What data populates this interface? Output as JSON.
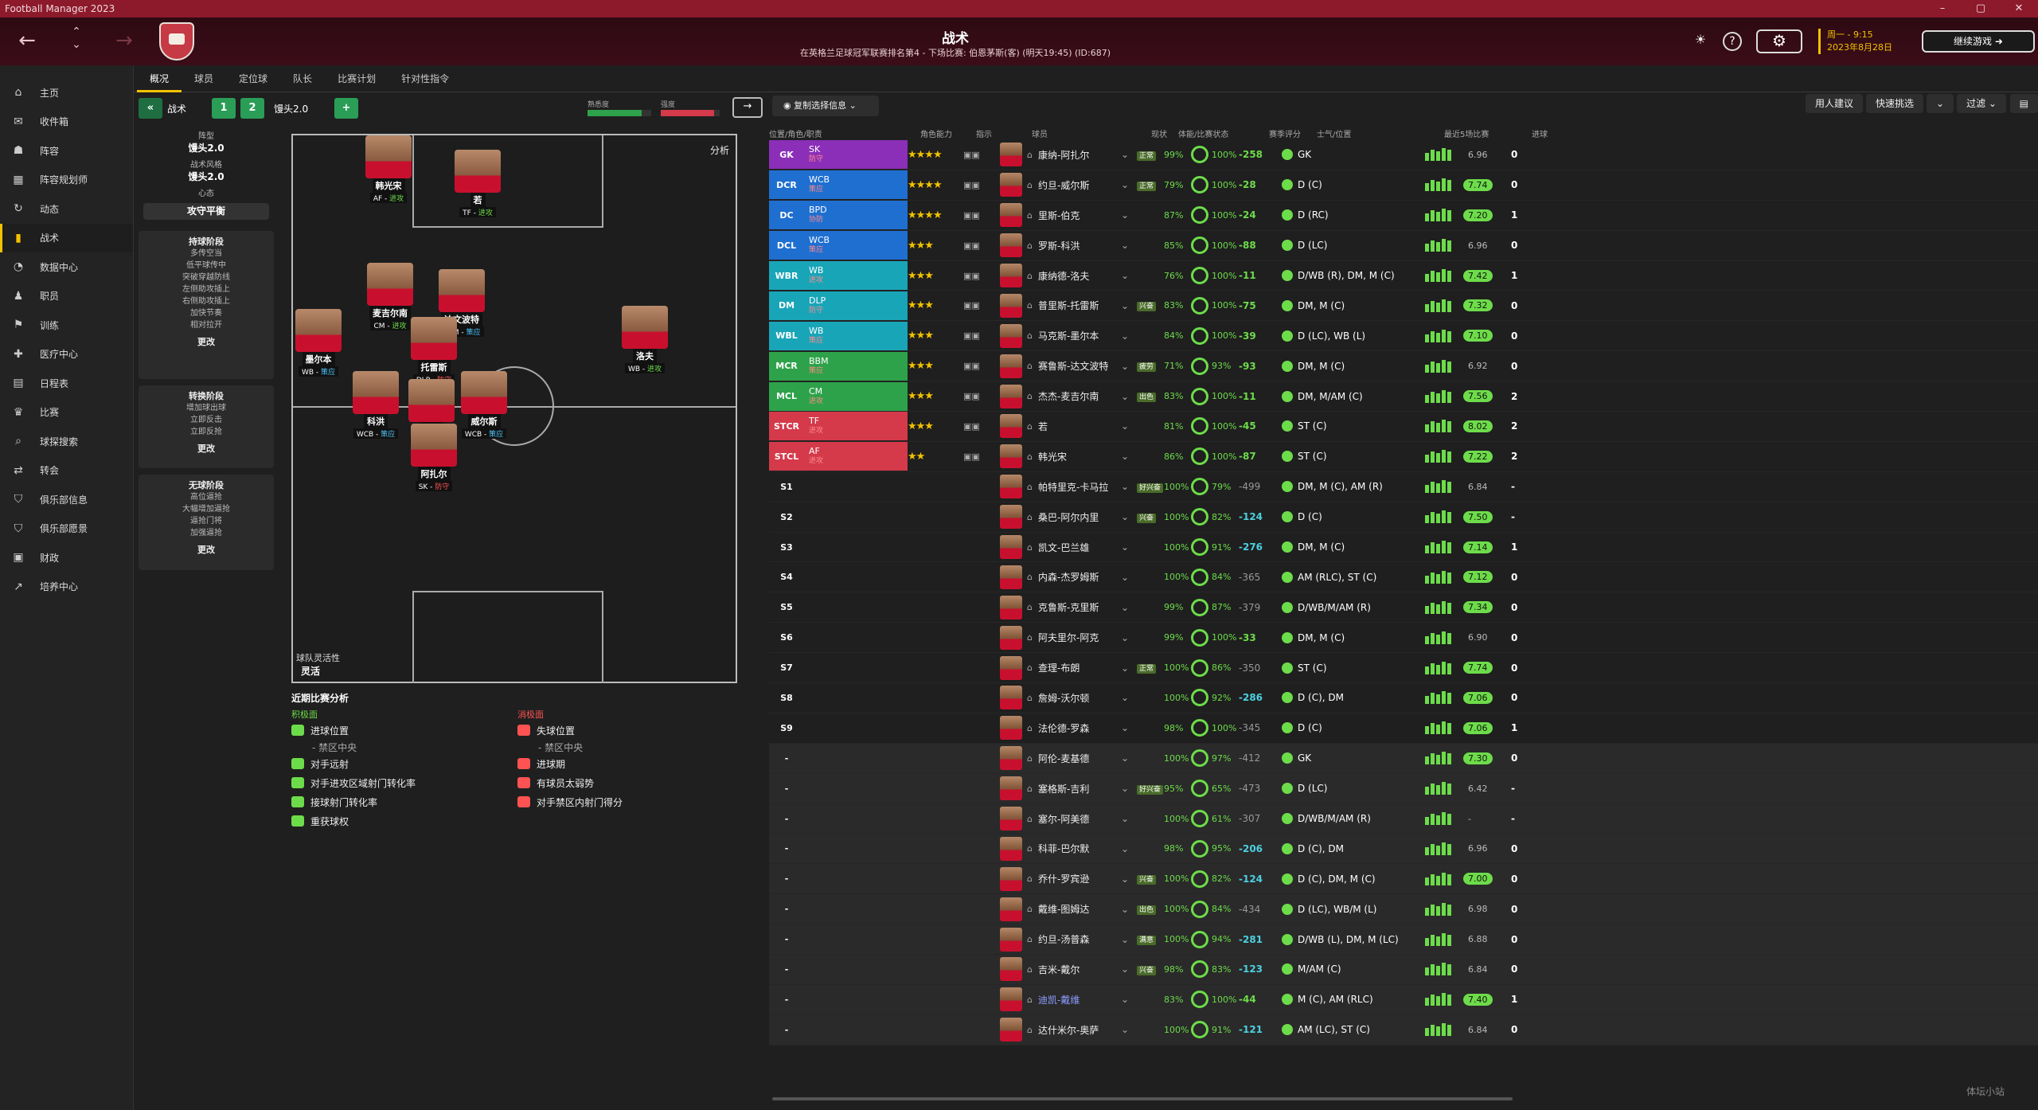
{
  "window": {
    "title": "Football Manager 2023"
  },
  "header": {
    "title": "战术",
    "subtitle": "在英格兰足球冠军联赛排名第4 - 下场比赛: 伯恩茅斯(客) (明天19:45) (ID:687)",
    "date_line1": "周一 - 9:15",
    "date_line2": "2023年8月28日",
    "continue": "继续游戏"
  },
  "sidebar": {
    "items": [
      {
        "label": "主页",
        "icon": "home-icon"
      },
      {
        "label": "收件箱",
        "icon": "inbox-icon"
      },
      {
        "label": "阵容",
        "icon": "squad-icon"
      },
      {
        "label": "阵容规划师",
        "icon": "planner-icon"
      },
      {
        "label": "动态",
        "icon": "dynamics-icon"
      },
      {
        "label": "战术",
        "icon": "tactics-icon"
      },
      {
        "label": "数据中心",
        "icon": "data-icon"
      },
      {
        "label": "职员",
        "icon": "staff-icon"
      },
      {
        "label": "训练",
        "icon": "training-icon"
      },
      {
        "label": "医疗中心",
        "icon": "medical-icon"
      },
      {
        "label": "日程表",
        "icon": "schedule-icon"
      },
      {
        "label": "比赛",
        "icon": "trophy-icon"
      },
      {
        "label": "球探搜索",
        "icon": "scouting-icon"
      },
      {
        "label": "转会",
        "icon": "transfer-icon"
      },
      {
        "label": "俱乐部信息",
        "icon": "club-icon"
      },
      {
        "label": "俱乐部愿景",
        "icon": "vision-icon"
      },
      {
        "label": "财政",
        "icon": "finance-icon"
      },
      {
        "label": "培养中心",
        "icon": "development-icon"
      }
    ]
  },
  "tabs": [
    "概况",
    "球员",
    "定位球",
    "队长",
    "比赛计划",
    "针对性指令"
  ],
  "tacbar": {
    "label": "战术",
    "t1": "1",
    "t2": "2",
    "tactic_name": "馒头2.0",
    "plus": "+",
    "familiarity": "熟悉度",
    "intensity": "强度",
    "copy": "复制选择信息"
  },
  "toolbar": {
    "suggest": "用人建议",
    "quick": "快速挑选",
    "filter": "过滤"
  },
  "left": {
    "formation_label": "阵型",
    "formation": "馒头2.0",
    "style_label": "战术风格",
    "style": "馒头2.0",
    "mentality_label": "心态",
    "mentality": "攻守平衡",
    "in_poss": "持球阶段",
    "in_poss_items": [
      "多传空当",
      "低平球传中",
      "突破穿越防线",
      "左侧助攻插上",
      "右侧助攻插上",
      "加快节奏",
      "相对拉开"
    ],
    "trans": "转换阶段",
    "trans_items": [
      "增加球出球",
      "立即反击",
      "立即反抢"
    ],
    "out_poss": "无球阶段",
    "out_poss_items": [
      "高位逼抢",
      "大幅增加逼抢",
      "逼抢门将",
      "加强逼抢"
    ],
    "more": "更改"
  },
  "pitch": {
    "analysis": "分析",
    "fluidity_label": "球队灵活性",
    "fluidity": "灵活",
    "players": [
      {
        "name": "韩光宋",
        "role": "AF",
        "duty": "进攻",
        "cls": "atk"
      },
      {
        "name": "若",
        "role": "TF",
        "duty": "进攻",
        "cls": "atk"
      },
      {
        "name": "麦吉尔南",
        "role": "CM",
        "duty": "进攻",
        "cls": "atk"
      },
      {
        "name": "达文波特",
        "role": "BBM",
        "duty": "策应",
        "cls": ""
      },
      {
        "name": "墨尔本",
        "role": "WB",
        "duty": "策应",
        "cls": ""
      },
      {
        "name": "托雷斯",
        "role": "DLP",
        "duty": "防守",
        "cls": "sup"
      },
      {
        "name": "洛夫",
        "role": "WB",
        "duty": "进攻",
        "cls": "atk"
      },
      {
        "name": "科洪",
        "role": "WCB",
        "duty": "策应",
        "cls": ""
      },
      {
        "name": "伯克",
        "role": "BPD",
        "duty": "协防",
        "cls": "sup"
      },
      {
        "name": "威尔斯",
        "role": "WCB",
        "duty": "策应",
        "cls": ""
      },
      {
        "name": "阿扎尔",
        "role": "SK",
        "duty": "防守",
        "cls": "sup"
      }
    ]
  },
  "analysis": {
    "title": "近期比赛分析",
    "pos": "积极面",
    "neg": "消极面",
    "pos_items": [
      "进球位置",
      "- 禁区中央",
      "对手远射",
      "对手进攻区域射门转化率",
      "接球射门转化率",
      "重获球权"
    ],
    "neg_items": [
      "失球位置",
      "- 禁区中央",
      "进球期",
      "有球员太弱势",
      "对手禁区内射门得分"
    ]
  },
  "table": {
    "headers": [
      "位置/角色/职责",
      "角色能力",
      "指示",
      "球员",
      "现状",
      "体能/比赛状态",
      "赛季评分",
      "士气/位置",
      "最近5场比赛",
      "进球"
    ],
    "rows": [
      {
        "pos": "GK",
        "role": "SK",
        "duty": "防守",
        "stars": "★★★★",
        "name": "康纳-阿扎尔",
        "status": "正常",
        "cond": "99%",
        "sharp": "100%",
        "val": "-258",
        "vc": "g",
        "ppos": "GK",
        "rating": "6.96",
        "rg": false,
        "goals": "0",
        "color": "#8b2fb8"
      },
      {
        "pos": "DCR",
        "role": "WCB",
        "duty": "策应",
        "stars": "★★★★",
        "name": "约旦-威尔斯",
        "status": "正常",
        "cond": "79%",
        "sharp": "100%",
        "val": "-28",
        "vc": "g",
        "ppos": "D (C)",
        "rating": "7.74",
        "rg": true,
        "goals": "0",
        "color": "#1f6fd1"
      },
      {
        "pos": "DC",
        "role": "BPD",
        "duty": "协防",
        "stars": "★★★★",
        "name": "里斯-伯克",
        "status": "",
        "cond": "87%",
        "sharp": "100%",
        "val": "-24",
        "vc": "g",
        "ppos": "D (RC)",
        "rating": "7.20",
        "rg": true,
        "goals": "1",
        "color": "#1f6fd1"
      },
      {
        "pos": "DCL",
        "role": "WCB",
        "duty": "策应",
        "stars": "★★★",
        "name": "罗斯-科洪",
        "status": "",
        "cond": "85%",
        "sharp": "100%",
        "val": "-88",
        "vc": "g",
        "ppos": "D (LC)",
        "rating": "6.96",
        "rg": false,
        "goals": "0",
        "color": "#1f6fd1"
      },
      {
        "pos": "WBR",
        "role": "WB",
        "duty": "进攻",
        "stars": "★★★",
        "name": "康纳德-洛夫",
        "status": "",
        "cond": "76%",
        "sharp": "100%",
        "val": "-11",
        "vc": "g",
        "ppos": "D/WB (R), DM, M (C)",
        "rating": "7.42",
        "rg": true,
        "goals": "1",
        "color": "#19a5b8"
      },
      {
        "pos": "DM",
        "role": "DLP",
        "duty": "防守",
        "stars": "★★★",
        "name": "普里斯-托雷斯",
        "status": "兴奋",
        "cond": "83%",
        "sharp": "100%",
        "val": "-75",
        "vc": "g",
        "ppos": "DM, M (C)",
        "rating": "7.32",
        "rg": true,
        "goals": "0",
        "color": "#19a5b8"
      },
      {
        "pos": "WBL",
        "role": "WB",
        "duty": "策应",
        "stars": "★★★",
        "name": "马克斯-墨尔本",
        "status": "",
        "cond": "84%",
        "sharp": "100%",
        "val": "-39",
        "vc": "g",
        "ppos": "D (LC), WB (L)",
        "rating": "7.10",
        "rg": true,
        "goals": "0",
        "color": "#19a5b8"
      },
      {
        "pos": "MCR",
        "role": "BBM",
        "duty": "策应",
        "stars": "★★★",
        "name": "赛鲁斯-达文波特",
        "status": "疲劳",
        "cond": "71%",
        "sharp": "93%",
        "val": "-93",
        "vc": "g",
        "ppos": "DM, M (C)",
        "rating": "6.92",
        "rg": false,
        "goals": "0",
        "color": "#2ea24a"
      },
      {
        "pos": "MCL",
        "role": "CM",
        "duty": "进攻",
        "stars": "★★★",
        "name": "杰杰-麦吉尔南",
        "status": "出色",
        "cond": "83%",
        "sharp": "100%",
        "val": "-11",
        "vc": "g",
        "ppos": "DM, M/AM (C)",
        "rating": "7.56",
        "rg": true,
        "goals": "2",
        "color": "#2ea24a"
      },
      {
        "pos": "STCR",
        "role": "TF",
        "duty": "进攻",
        "stars": "★★★",
        "name": "若",
        "status": "",
        "cond": "81%",
        "sharp": "100%",
        "val": "-45",
        "vc": "g",
        "ppos": "ST (C)",
        "rating": "8.02",
        "rg": true,
        "goals": "2",
        "color": "#d43a4a"
      },
      {
        "pos": "STCL",
        "role": "AF",
        "duty": "进攻",
        "stars": "★★",
        "name": "韩光宋",
        "status": "",
        "cond": "86%",
        "sharp": "100%",
        "val": "-87",
        "vc": "g",
        "ppos": "ST (C)",
        "rating": "7.22",
        "rg": true,
        "goals": "2",
        "color": "#d43a4a"
      },
      {
        "pos": "S1",
        "name": "帕特里克-卡马拉",
        "status": "好兴奋",
        "cond": "100%",
        "sharp": "79%",
        "val": "-499",
        "vc": "w",
        "ppos": "DM, M (C), AM (R)",
        "rating": "6.84",
        "rg": false,
        "goals": "-",
        "color": ""
      },
      {
        "pos": "S2",
        "name": "桑巴-阿尔内里",
        "status": "兴奋",
        "cond": "100%",
        "sharp": "82%",
        "val": "-124",
        "vc": "c",
        "ppos": "D (C)",
        "rating": "7.50",
        "rg": true,
        "goals": "-",
        "color": ""
      },
      {
        "pos": "S3",
        "name": "凯文-巴兰雄",
        "status": "",
        "cond": "100%",
        "sharp": "91%",
        "val": "-276",
        "vc": "c",
        "ppos": "DM, M (C)",
        "rating": "7.14",
        "rg": true,
        "goals": "1",
        "color": ""
      },
      {
        "pos": "S4",
        "name": "内森-杰罗姆斯",
        "status": "",
        "cond": "100%",
        "sharp": "84%",
        "val": "-365",
        "vc": "w",
        "ppos": "AM (RLC), ST (C)",
        "rating": "7.12",
        "rg": true,
        "goals": "0",
        "color": ""
      },
      {
        "pos": "S5",
        "name": "克鲁斯-克里斯",
        "status": "",
        "cond": "99%",
        "sharp": "87%",
        "val": "-379",
        "vc": "w",
        "ppos": "D/WB/M/AM (R)",
        "rating": "7.34",
        "rg": true,
        "goals": "0",
        "color": ""
      },
      {
        "pos": "S6",
        "name": "阿夫里尔-阿克",
        "status": "",
        "cond": "99%",
        "sharp": "100%",
        "val": "-33",
        "vc": "g",
        "ppos": "DM, M (C)",
        "rating": "6.90",
        "rg": false,
        "goals": "0",
        "color": ""
      },
      {
        "pos": "S7",
        "name": "查理-布朗",
        "status": "正常",
        "cond": "100%",
        "sharp": "86%",
        "val": "-350",
        "vc": "w",
        "ppos": "ST (C)",
        "rating": "7.74",
        "rg": true,
        "goals": "0",
        "color": ""
      },
      {
        "pos": "S8",
        "name": "詹姆-沃尔顿",
        "status": "",
        "cond": "100%",
        "sharp": "92%",
        "val": "-286",
        "vc": "c",
        "ppos": "D (C), DM",
        "rating": "7.06",
        "rg": true,
        "goals": "0",
        "color": ""
      },
      {
        "pos": "S9",
        "name": "法伦德-罗森",
        "status": "",
        "cond": "98%",
        "sharp": "100%",
        "val": "-345",
        "vc": "w",
        "ppos": "D (C)",
        "rating": "7.06",
        "rg": true,
        "goals": "1",
        "color": ""
      },
      {
        "pos": "-",
        "name": "阿伦-麦基德",
        "status": "",
        "cond": "100%",
        "sharp": "97%",
        "val": "-412",
        "vc": "w",
        "ppos": "GK",
        "rating": "7.30",
        "rg": true,
        "goals": "0",
        "color": ""
      },
      {
        "pos": "-",
        "name": "塞格斯-吉利",
        "status": "好兴奋",
        "cond": "95%",
        "sharp": "65%",
        "val": "-473",
        "vc": "w",
        "ppos": "D (LC)",
        "rating": "6.42",
        "rg": false,
        "goals": "-",
        "color": ""
      },
      {
        "pos": "-",
        "name": "塞尔-阿美德",
        "status": "",
        "cond": "100%",
        "sharp": "61%",
        "val": "-307",
        "vc": "w",
        "ppos": "D/WB/M/AM (R)",
        "rating": "-",
        "rg": false,
        "goals": "-",
        "color": ""
      },
      {
        "pos": "-",
        "name": "科菲-巴尔默",
        "status": "",
        "cond": "98%",
        "sharp": "95%",
        "val": "-206",
        "vc": "c",
        "ppos": "D (C), DM",
        "rating": "6.96",
        "rg": false,
        "goals": "0",
        "color": ""
      },
      {
        "pos": "-",
        "name": "乔什-罗宾逊",
        "status": "兴奋",
        "cond": "100%",
        "sharp": "82%",
        "val": "-124",
        "vc": "c",
        "ppos": "D (C), DM, M (C)",
        "rating": "7.00",
        "rg": true,
        "goals": "0",
        "color": ""
      },
      {
        "pos": "-",
        "name": "戴维-图姆达",
        "status": "出色",
        "cond": "100%",
        "sharp": "84%",
        "val": "-434",
        "vc": "w",
        "ppos": "D (LC), WB/M (L)",
        "rating": "6.98",
        "rg": false,
        "goals": "0",
        "color": ""
      },
      {
        "pos": "-",
        "name": "约旦-汤普森",
        "status": "满意",
        "cond": "100%",
        "sharp": "94%",
        "val": "-281",
        "vc": "c",
        "ppos": "D/WB (L), DM, M (LC)",
        "rating": "6.88",
        "rg": false,
        "goals": "0",
        "color": ""
      },
      {
        "pos": "-",
        "name": "吉米-戴尔",
        "status": "兴奋",
        "cond": "98%",
        "sharp": "83%",
        "val": "-123",
        "vc": "c",
        "ppos": "M/AM (C)",
        "rating": "6.84",
        "rg": false,
        "goals": "0",
        "color": ""
      },
      {
        "pos": "-",
        "name": "迪凯-戴维",
        "status": "",
        "cond": "83%",
        "sharp": "100%",
        "val": "-44",
        "vc": "g",
        "ppos": "M (C), AM (RLC)",
        "rating": "7.40",
        "rg": true,
        "goals": "1",
        "color": "",
        "blue": true
      },
      {
        "pos": "-",
        "name": "达什米尔-奥萨",
        "status": "",
        "cond": "100%",
        "sharp": "91%",
        "val": "-121",
        "vc": "c",
        "ppos": "AM (LC), ST (C)",
        "rating": "6.84",
        "rg": false,
        "goals": "0",
        "color": ""
      }
    ]
  },
  "watermark": "体坛小站"
}
